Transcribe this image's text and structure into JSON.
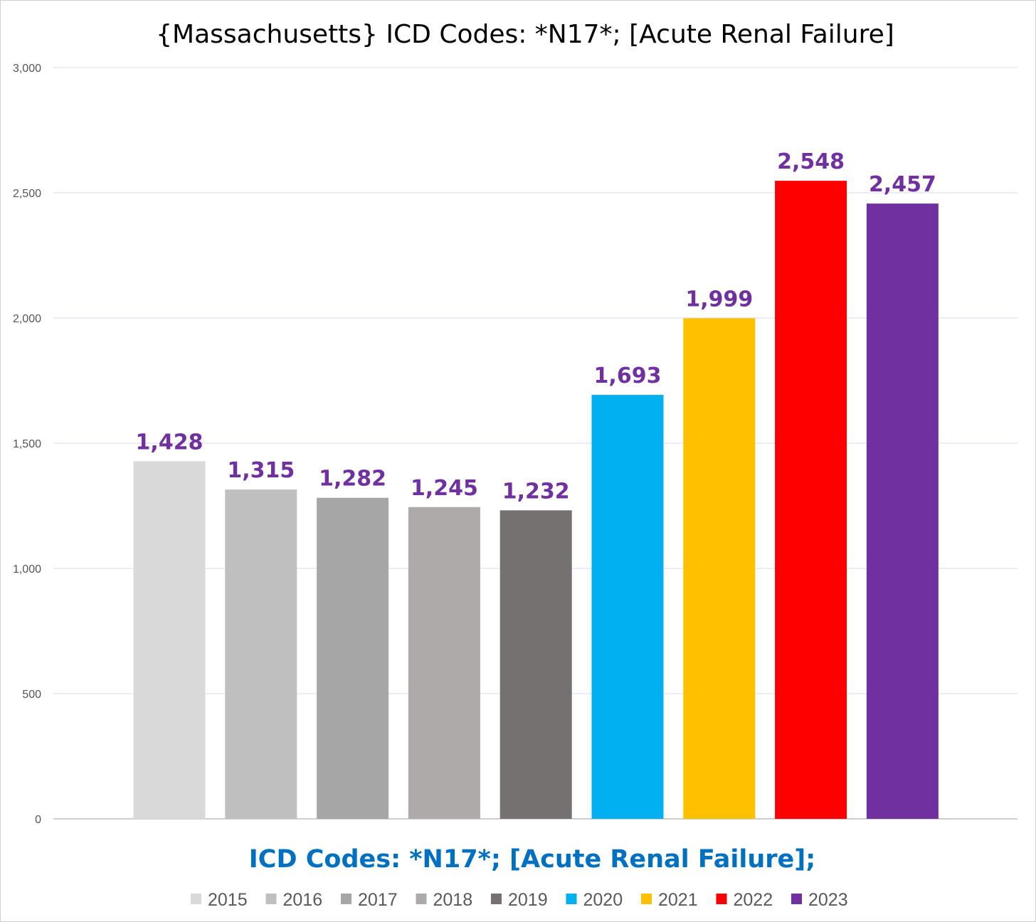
{
  "chart_data": {
    "type": "bar",
    "title": "{Massachusetts}  ICD Codes: *N17*;  [Acute Renal Failure]",
    "xlabel": "ICD Codes: *N17*;  [Acute Renal Failure];",
    "ylabel": "",
    "ylim": [
      0,
      3000
    ],
    "yticks": [
      0,
      500,
      1000,
      1500,
      2000,
      2500,
      3000
    ],
    "ytick_labels": [
      "0",
      "500",
      "1,000",
      "1,500",
      "2,000",
      "2,500",
      "3,000"
    ],
    "grid": true,
    "legend_position": "bottom",
    "series": [
      {
        "name": "2015",
        "value": 1428,
        "label": "1,428",
        "color": "#d9d9d9"
      },
      {
        "name": "2016",
        "value": 1315,
        "label": "1,315",
        "color": "#bfbfbf"
      },
      {
        "name": "2017",
        "value": 1282,
        "label": "1,282",
        "color": "#a6a6a6"
      },
      {
        "name": "2018",
        "value": 1245,
        "label": "1,245",
        "color": "#aeaaaa"
      },
      {
        "name": "2019",
        "value": 1232,
        "label": "1,232",
        "color": "#767171"
      },
      {
        "name": "2020",
        "value": 1693,
        "label": "1,693",
        "color": "#00b0f0"
      },
      {
        "name": "2021",
        "value": 1999,
        "label": "1,999",
        "color": "#ffc000"
      },
      {
        "name": "2022",
        "value": 2548,
        "label": "2,548",
        "color": "#ff0000"
      },
      {
        "name": "2023",
        "value": 2457,
        "label": "2,457",
        "color": "#7030a0"
      }
    ],
    "colors": {
      "data_label": "#7030a0",
      "axis_title": "#0070c0",
      "gridline": "#d9d9ef"
    }
  }
}
